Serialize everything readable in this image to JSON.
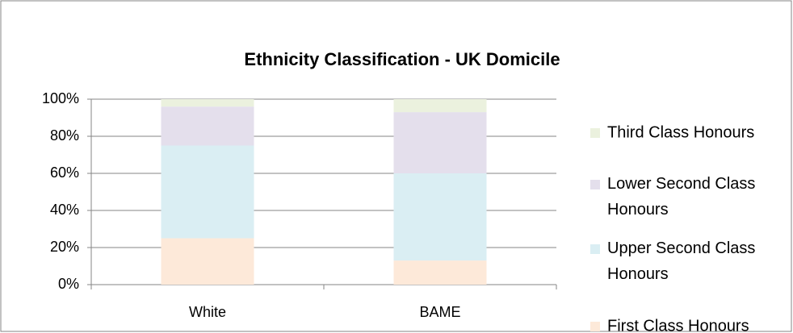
{
  "chart_data": {
    "type": "stacked_bar",
    "title": "Ethnicity Classification - UK Domicile",
    "categories": [
      "White",
      "BAME"
    ],
    "series": [
      {
        "name": "First Class Honours",
        "color": "#fde9d9",
        "values": [
          25,
          13
        ]
      },
      {
        "name": "Upper Second Class Honours",
        "color": "#daeef3",
        "values": [
          50,
          47
        ]
      },
      {
        "name": "Lower Second Class Honours",
        "color": "#e4dfec",
        "values": [
          21,
          33
        ]
      },
      {
        "name": "Third Class Honours",
        "color": "#ebf1de",
        "values": [
          4,
          7
        ]
      }
    ],
    "ylim": [
      0,
      100
    ],
    "yticks": [
      {
        "value": 0,
        "label": "0%"
      },
      {
        "value": 20,
        "label": "20%"
      },
      {
        "value": 40,
        "label": "40%"
      },
      {
        "value": 60,
        "label": "60%"
      },
      {
        "value": 80,
        "label": "80%"
      },
      {
        "value": 100,
        "label": "100%"
      }
    ],
    "grid": true,
    "legend": "right"
  }
}
